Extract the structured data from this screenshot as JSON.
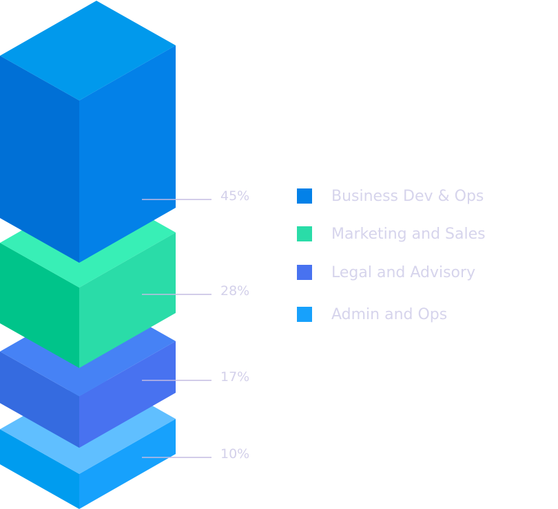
{
  "chart_data": {
    "type": "bar",
    "style": "isometric stacked blocks",
    "categories": [
      "Business Dev & Ops",
      "Marketing and Sales",
      "Legal and Advisory",
      "Admin and Ops"
    ],
    "values": [
      45,
      28,
      17,
      10
    ],
    "value_labels": [
      "45%",
      "28%",
      "17%",
      "10%"
    ],
    "legend_placement": "right",
    "colors": [
      "#0381e8",
      "#2adca8",
      "#4872f0",
      "#17a1fc"
    ],
    "face_colors": [
      {
        "top": "#0199ec",
        "left": "#0070d6",
        "right": "#0381e8"
      },
      {
        "top": "#38efb6",
        "left": "#00c48a",
        "right": "#2adca8"
      },
      {
        "top": "#4682f5",
        "left": "#356be0",
        "right": "#4872f0"
      },
      {
        "top": "#60bfff",
        "left": "#009cef",
        "right": "#17a1fc"
      }
    ],
    "label_color": "#d3d0ea",
    "leader_color": "#c3bbe2"
  }
}
